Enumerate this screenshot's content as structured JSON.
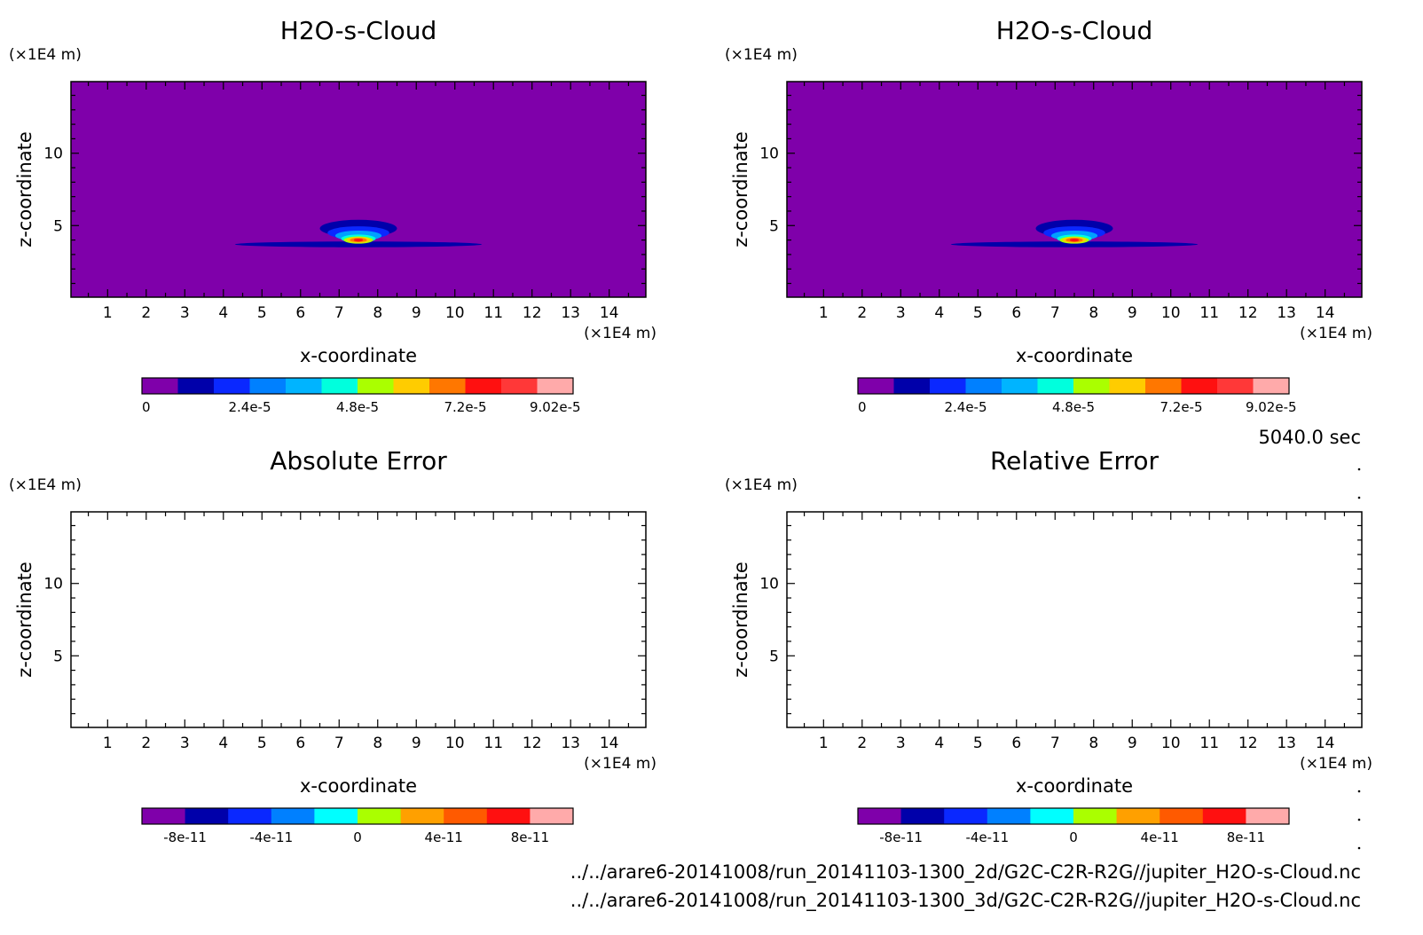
{
  "figure": {
    "time_label": "5040.0 sec",
    "file_lines": [
      "../../arare6-20141008/run_20141103-1300_2d/G2C-C2R-R2G//jupiter_H2O-s-Cloud.nc",
      "../../arare6-20141008/run_20141103-1300_3d/G2C-C2R-R2G//jupiter_H2O-s-Cloud.nc"
    ]
  },
  "chart_data": [
    {
      "type": "heatmap",
      "title": "H2O-s-Cloud",
      "xlabel": "x-coordinate",
      "ylabel": "z-coordinate",
      "x_unit": "(×1E4 m)",
      "y_unit": "(×1E4 m)",
      "xlim": [
        0.05,
        14.95
      ],
      "ylim": [
        0.05,
        14.95
      ],
      "x_ticks": [
        "1",
        "2",
        "3",
        "4",
        "5",
        "6",
        "7",
        "8",
        "9",
        "10",
        "11",
        "12",
        "13",
        "14"
      ],
      "y_ticks": [
        "5",
        "10"
      ],
      "background_color": "#7f00aa",
      "field": {
        "description": "solid cloud concentrated near x≈7.5, z≈4",
        "contours": [
          {
            "level": 1,
            "color": "#0000aa",
            "cx": 7.5,
            "cz": 3.7,
            "rx": 3.2,
            "rz": 0.2
          },
          {
            "level": 1,
            "color": "#0000aa",
            "cx": 7.5,
            "cz": 4.8,
            "rx": 1.0,
            "rz": 0.6
          },
          {
            "level": 2,
            "color": "#0a28ff",
            "cx": 7.5,
            "cz": 4.5,
            "rx": 0.8,
            "rz": 0.45
          },
          {
            "level": 3,
            "color": "#00a0ff",
            "cx": 7.5,
            "cz": 4.3,
            "rx": 0.6,
            "rz": 0.35
          },
          {
            "level": 4,
            "color": "#00ffdd",
            "cx": 7.5,
            "cz": 4.1,
            "rx": 0.45,
            "rz": 0.28
          },
          {
            "level": 5,
            "color": "#aaff00",
            "cx": 7.5,
            "cz": 4.0,
            "rx": 0.38,
            "rz": 0.25
          },
          {
            "level": 6,
            "color": "#ffcc00",
            "cx": 7.5,
            "cz": 4.0,
            "rx": 0.3,
            "rz": 0.2
          },
          {
            "level": 7,
            "color": "#ff7700",
            "cx": 7.5,
            "cz": 4.0,
            "rx": 0.22,
            "rz": 0.15
          },
          {
            "level": 8,
            "color": "#ff1010",
            "cx": 7.5,
            "cz": 4.0,
            "rx": 0.12,
            "rz": 0.1
          }
        ]
      },
      "colorbar": {
        "colors": [
          "#7f00aa",
          "#0000aa",
          "#0a28ff",
          "#0080ff",
          "#00b4ff",
          "#00ffdd",
          "#aaff00",
          "#ffcc00",
          "#ff7700",
          "#ff1010",
          "#ff3838",
          "#ffaaaa"
        ],
        "tick_labels": [
          "0",
          "2.4e-5",
          "4.8e-5",
          "7.2e-5",
          "9.02e-5"
        ],
        "tick_positions": [
          0,
          3,
          6,
          9,
          11.5
        ]
      }
    },
    {
      "type": "heatmap",
      "title": "H2O-s-Cloud",
      "xlabel": "x-coordinate",
      "ylabel": "z-coordinate",
      "x_unit": "(×1E4 m)",
      "y_unit": "(×1E4 m)",
      "xlim": [
        0.05,
        14.95
      ],
      "ylim": [
        0.05,
        14.95
      ],
      "x_ticks": [
        "1",
        "2",
        "3",
        "4",
        "5",
        "6",
        "7",
        "8",
        "9",
        "10",
        "11",
        "12",
        "13",
        "14"
      ],
      "y_ticks": [
        "5",
        "10"
      ],
      "background_color": "#7f00aa",
      "field": {
        "description": "solid cloud concentrated near x≈7.5, z≈4",
        "contours": [
          {
            "level": 1,
            "color": "#0000aa",
            "cx": 7.5,
            "cz": 3.7,
            "rx": 3.2,
            "rz": 0.2
          },
          {
            "level": 1,
            "color": "#0000aa",
            "cx": 7.5,
            "cz": 4.8,
            "rx": 1.0,
            "rz": 0.6
          },
          {
            "level": 2,
            "color": "#0a28ff",
            "cx": 7.5,
            "cz": 4.5,
            "rx": 0.8,
            "rz": 0.45
          },
          {
            "level": 3,
            "color": "#00a0ff",
            "cx": 7.5,
            "cz": 4.3,
            "rx": 0.6,
            "rz": 0.35
          },
          {
            "level": 4,
            "color": "#00ffdd",
            "cx": 7.5,
            "cz": 4.1,
            "rx": 0.45,
            "rz": 0.28
          },
          {
            "level": 5,
            "color": "#aaff00",
            "cx": 7.5,
            "cz": 4.0,
            "rx": 0.38,
            "rz": 0.25
          },
          {
            "level": 6,
            "color": "#ffcc00",
            "cx": 7.5,
            "cz": 4.0,
            "rx": 0.3,
            "rz": 0.2
          },
          {
            "level": 7,
            "color": "#ff7700",
            "cx": 7.5,
            "cz": 4.0,
            "rx": 0.22,
            "rz": 0.15
          },
          {
            "level": 8,
            "color": "#ff1010",
            "cx": 7.5,
            "cz": 4.0,
            "rx": 0.12,
            "rz": 0.1
          }
        ]
      },
      "colorbar": {
        "colors": [
          "#7f00aa",
          "#0000aa",
          "#0a28ff",
          "#0080ff",
          "#00b4ff",
          "#00ffdd",
          "#aaff00",
          "#ffcc00",
          "#ff7700",
          "#ff1010",
          "#ff3838",
          "#ffaaaa"
        ],
        "tick_labels": [
          "0",
          "2.4e-5",
          "4.8e-5",
          "7.2e-5",
          "9.02e-5"
        ],
        "tick_positions": [
          0,
          3,
          6,
          9,
          11.5
        ]
      }
    },
    {
      "type": "heatmap",
      "title": "Absolute Error",
      "xlabel": "x-coordinate",
      "ylabel": "z-coordinate",
      "x_unit": "(×1E4 m)",
      "y_unit": "(×1E4 m)",
      "xlim": [
        0.05,
        14.95
      ],
      "ylim": [
        0.05,
        14.95
      ],
      "x_ticks": [
        "1",
        "2",
        "3",
        "4",
        "5",
        "6",
        "7",
        "8",
        "9",
        "10",
        "11",
        "12",
        "13",
        "14"
      ],
      "y_ticks": [
        "5",
        "10"
      ],
      "background_color": "#ffffff",
      "field": {
        "description": "empty",
        "contours": []
      },
      "colorbar": {
        "colors": [
          "#7f00aa",
          "#0000aa",
          "#0a28ff",
          "#0080ff",
          "#00ffff",
          "#aaff00",
          "#ffa000",
          "#ff5a00",
          "#ff1010",
          "#ffaaaa"
        ],
        "tick_labels": [
          "-8e-11",
          "-4e-11",
          "0",
          "4e-11",
          "8e-11"
        ],
        "tick_positions": [
          1,
          3,
          5,
          7,
          9
        ]
      }
    },
    {
      "type": "heatmap",
      "title": "Relative Error",
      "xlabel": "x-coordinate",
      "ylabel": "z-coordinate",
      "x_unit": "(×1E4 m)",
      "y_unit": "(×1E4 m)",
      "xlim": [
        0.05,
        14.95
      ],
      "ylim": [
        0.05,
        14.95
      ],
      "x_ticks": [
        "1",
        "2",
        "3",
        "4",
        "5",
        "6",
        "7",
        "8",
        "9",
        "10",
        "11",
        "12",
        "13",
        "14"
      ],
      "y_ticks": [
        "5",
        "10"
      ],
      "background_color": "#ffffff",
      "field": {
        "description": "empty",
        "contours": []
      },
      "colorbar": {
        "colors": [
          "#7f00aa",
          "#0000aa",
          "#0a28ff",
          "#0080ff",
          "#00ffff",
          "#aaff00",
          "#ffa000",
          "#ff5a00",
          "#ff1010",
          "#ffaaaa"
        ],
        "tick_labels": [
          "-8e-11",
          "-4e-11",
          "0",
          "4e-11",
          "8e-11"
        ],
        "tick_positions": [
          1,
          3,
          5,
          7,
          9
        ]
      }
    }
  ]
}
